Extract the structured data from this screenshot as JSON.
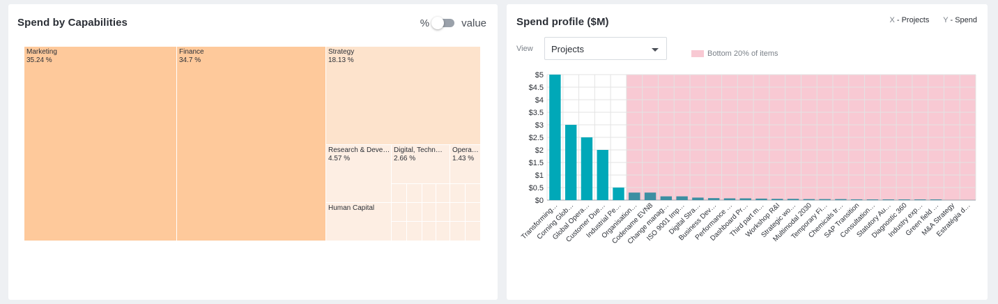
{
  "left_panel": {
    "title": "Spend by Capabilities",
    "toggle": {
      "left_label": "%",
      "right_label": "value",
      "state": "percent"
    },
    "treemap": [
      {
        "label": "Marketing",
        "pct": "35.24 %",
        "color": "#fec99b"
      },
      {
        "label": "Finance",
        "pct": "34.7 %",
        "color": "#fec99b"
      },
      {
        "label": "Strategy",
        "pct": "18.13 %",
        "color": "#fde3cc"
      },
      {
        "label": "Research & Deve…",
        "pct": "4.57 %",
        "color": "#fdeee3"
      },
      {
        "label": "Digital, Techn…",
        "pct": "2.66 %",
        "color": "#fdeee3"
      },
      {
        "label": "Opera…",
        "pct": "1.43 %",
        "color": "#fdeee3"
      },
      {
        "label": "Human Capital",
        "pct": "",
        "color": "#fdeee3"
      }
    ]
  },
  "right_panel": {
    "title": "Spend profile ($M)",
    "axis_legend": {
      "x_key": "X",
      "x_value": "- Projects",
      "y_key": "Y",
      "y_value": "- Spend"
    },
    "view_label": "View",
    "view_select": {
      "value": "Projects"
    },
    "band_legend": "Bottom 20% of items",
    "colors": {
      "bar_primary": "#00a8b8",
      "bar_bottom": "#3d8fa2",
      "band": "#f8c9d3"
    }
  },
  "chart_data": {
    "type": "bar",
    "title": "Spend profile ($M)",
    "xlabel": "Projects",
    "ylabel": "Spend",
    "ylim": [
      0,
      5
    ],
    "y_ticks": [
      "$0",
      "$0.5",
      "$1",
      "$1.5",
      "$2",
      "$2.5",
      "$3",
      "$3.5",
      "$4",
      "$4.5",
      "$5"
    ],
    "categories": [
      "Transforming…",
      "Corning Glob…",
      "Global Opera…",
      "Customer Due…",
      "Industrial Pe…",
      "Organisation…",
      "Codename EVN8",
      "Change manag…",
      "ISO 9001 Imp…",
      "Digital Stra…",
      "Business Dev…",
      "Performance …",
      "Dashboard Pr…",
      "Third part m…",
      "Workshop R&I",
      "Strategic wo…",
      "Multimodal 2030",
      "Temporary Fi…",
      "Chemicals tr…",
      "SAP Transition",
      "Consultation…",
      "Statutory Au…",
      "Diagnostic 360",
      "Industry exp…",
      "Green field …",
      "M&A Strategy",
      "Estratégia d…"
    ],
    "values": [
      5.0,
      3.0,
      2.5,
      2.0,
      0.5,
      0.3,
      0.3,
      0.15,
      0.15,
      0.1,
      0.08,
      0.07,
      0.07,
      0.06,
      0.05,
      0.05,
      0.04,
      0.04,
      0.04,
      0.03,
      0.02,
      0.01,
      0.01,
      0.01,
      0.01,
      0.0,
      0.0
    ],
    "bottom_band_start_index": 5,
    "grid": true
  }
}
